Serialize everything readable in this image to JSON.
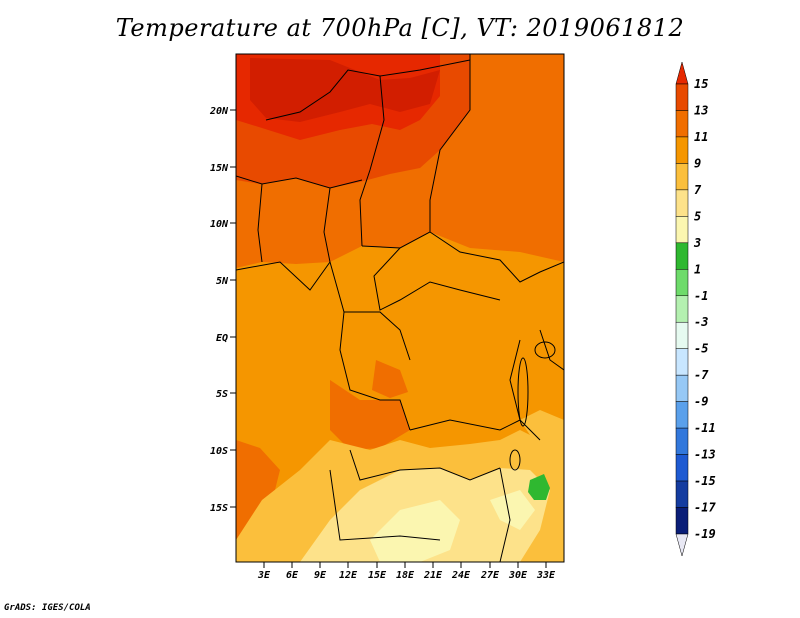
{
  "title": "Temperature at 700hPa [C], VT: 2019061812",
  "credit": "GrADS: IGES/COLA",
  "map": {
    "lat_ticks": [
      "20N",
      "15N",
      "10N",
      "5N",
      "EQ",
      "5S",
      "10S",
      "15S"
    ],
    "lon_ticks": [
      "3E",
      "6E",
      "9E",
      "12E",
      "15E",
      "18E",
      "21E",
      "24E",
      "27E",
      "30E",
      "33E"
    ]
  },
  "colorbar": {
    "labels": [
      "15",
      "13",
      "11",
      "9",
      "7",
      "5",
      "3",
      "1",
      "-1",
      "-3",
      "-5",
      "-7",
      "-9",
      "-11",
      "-13",
      "-15",
      "-17",
      "-19"
    ],
    "colors": [
      "#e62800",
      "#e84a00",
      "#f06e00",
      "#f59600",
      "#fbbf3c",
      "#fde28a",
      "#fbf6b0",
      "#2fb830",
      "#6edb6a",
      "#b4f0b0",
      "#e6faf0",
      "#c8e6ff",
      "#96c8f5",
      "#5aa0eb",
      "#3278dc",
      "#1e5ad2",
      "#143ca0",
      "#0a1e78",
      "#e8e8f4"
    ]
  }
}
